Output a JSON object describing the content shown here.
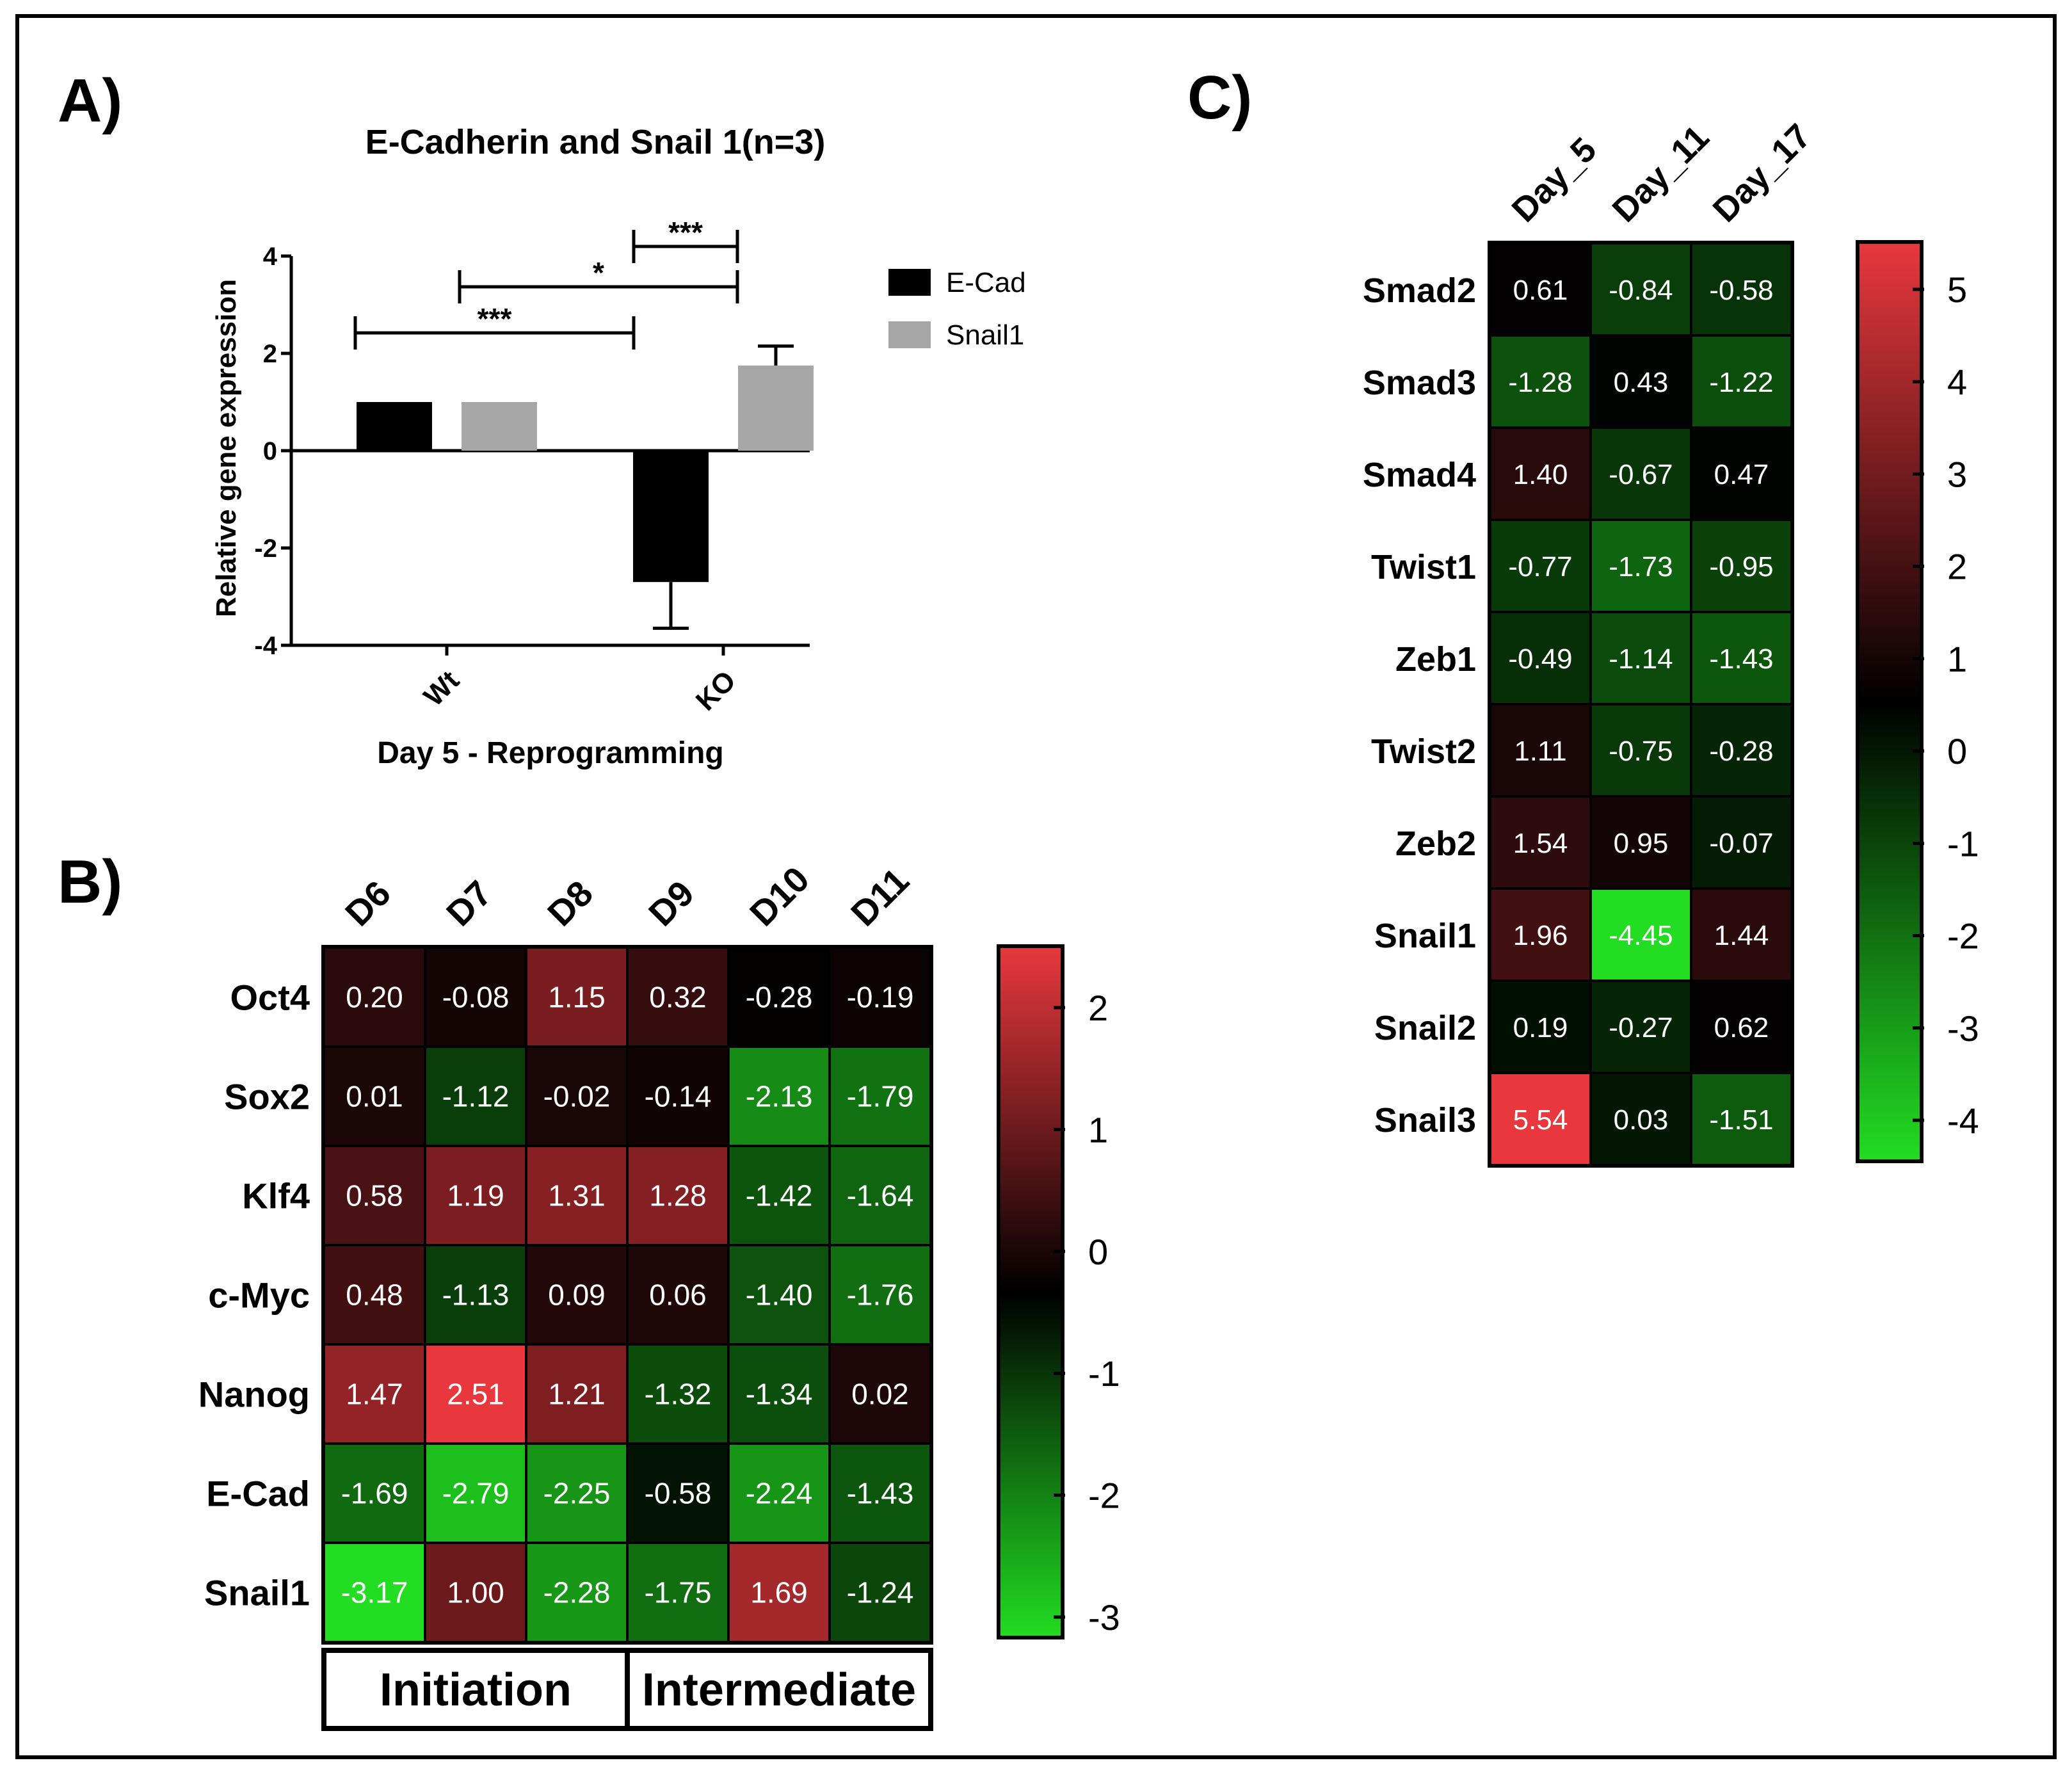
{
  "panels": {
    "a_label": "A)",
    "b_label": "B)",
    "c_label": "C)"
  },
  "colors": {
    "ecad": "#000000",
    "snail1": "#a6a6a6",
    "heat_high": "#e8383d",
    "heat_mid": "#000000",
    "heat_low": "#22dd22"
  },
  "chart_data": [
    {
      "type": "bar",
      "title": "E-Cadherin and Snail 1(n=3)",
      "xlabel": "Day 5 - Reprogramming",
      "ylabel": "Relative gene expression",
      "categories": [
        "Wt",
        "KO"
      ],
      "series": [
        {
          "name": "E-Cad",
          "values": [
            1.0,
            -2.7
          ],
          "error": [
            0,
            0.95
          ]
        },
        {
          "name": "Snail1",
          "values": [
            1.0,
            1.75
          ],
          "error": [
            0,
            0.4
          ]
        }
      ],
      "ylim": [
        -4,
        4
      ],
      "yticks": [
        "4",
        "2",
        "0",
        "-2",
        "-4"
      ],
      "legend": "right",
      "significance": [
        "***",
        "*",
        "***"
      ]
    },
    {
      "type": "heatmap",
      "columns": [
        "D6",
        "D7",
        "D8",
        "D9",
        "D10",
        "D11"
      ],
      "rows": [
        "Oct4",
        "Sox2",
        "Klf4",
        "c-Myc",
        "Nanog",
        "E-Cad",
        "Snail1"
      ],
      "values": [
        [
          "0.20",
          "-0.08",
          "1.15",
          "0.32",
          "-0.28",
          "-0.19"
        ],
        [
          "0.01",
          "-1.12",
          "-0.02",
          "-0.14",
          "-2.13",
          "-1.79"
        ],
        [
          "0.58",
          "1.19",
          "1.31",
          "1.28",
          "-1.42",
          "-1.64"
        ],
        [
          "0.48",
          "-1.13",
          "0.09",
          "0.06",
          "-1.40",
          "-1.76"
        ],
        [
          "1.47",
          "2.51",
          "1.21",
          "-1.32",
          "-1.34",
          "0.02"
        ],
        [
          "-1.69",
          "-2.79",
          "-2.25",
          "-0.58",
          "-2.24",
          "-1.43"
        ],
        [
          "-3.17",
          "1.00",
          "-2.28",
          "-1.75",
          "1.69",
          "-1.24"
        ]
      ],
      "colorbar_ticks": [
        "2",
        "1",
        "0",
        "-1",
        "-2",
        "-3"
      ],
      "phases": [
        "Initiation",
        "Intermediate"
      ]
    },
    {
      "type": "heatmap",
      "columns": [
        "Day_5",
        "Day_11",
        "Day_17"
      ],
      "rows": [
        "Smad2",
        "Smad3",
        "Smad4",
        "Twist1",
        "Zeb1",
        "Twist2",
        "Zeb2",
        "Snail1",
        "Snail2",
        "Snail3"
      ],
      "values": [
        [
          "0.61",
          "-0.84",
          "-0.58"
        ],
        [
          "-1.28",
          "0.43",
          "-1.22"
        ],
        [
          "1.40",
          "-0.67",
          "0.47"
        ],
        [
          "-0.77",
          "-1.73",
          "-0.95"
        ],
        [
          "-0.49",
          "-1.14",
          "-1.43"
        ],
        [
          "1.11",
          "-0.75",
          "-0.28"
        ],
        [
          "1.54",
          "0.95",
          "-0.07"
        ],
        [
          "1.96",
          "-4.45",
          "1.44"
        ],
        [
          "0.19",
          "-0.27",
          "0.62"
        ],
        [
          "5.54",
          "0.03",
          "-1.51"
        ]
      ],
      "colorbar_ticks": [
        "5",
        "4",
        "3",
        "2",
        "1",
        "0",
        "-1",
        "-2",
        "-3",
        "-4"
      ]
    }
  ]
}
